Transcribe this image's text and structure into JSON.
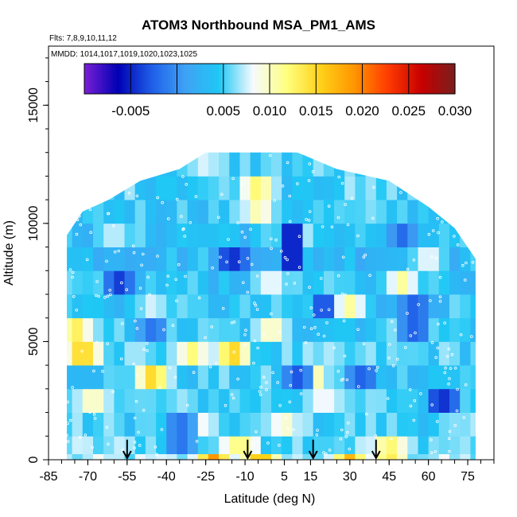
{
  "chart_data": {
    "type": "heatmap",
    "title": "ATOM3 Northbound MSA_PM1_AMS",
    "subtitle_flights": "Flts: 7,8,9,10,11,12",
    "subtitle_dates": "MMDD: 1014,1017,1019,1020,1023,1025",
    "xlabel": "Latitude (deg N)",
    "ylabel": "Altitude (m)",
    "xlim": [
      -85,
      85
    ],
    "ylim": [
      0,
      17500
    ],
    "x_ticks": [
      -85,
      -70,
      -55,
      -40,
      -25,
      -10,
      5,
      15,
      30,
      45,
      60,
      75
    ],
    "x_tick_labels": [
      "-85",
      "-70",
      "-55",
      "-40",
      "-25",
      "-10",
      "5",
      "15",
      "30",
      "45",
      "60",
      "75"
    ],
    "y_ticks": [
      0,
      5000,
      10000,
      15000
    ],
    "y_tick_labels": [
      "0",
      "5000",
      "10000",
      "15000"
    ],
    "colorbar": {
      "range": [
        -0.01,
        0.03
      ],
      "ticks": [
        -0.005,
        0.005,
        0.01,
        0.015,
        0.02,
        0.025,
        0.03
      ],
      "tick_labels": [
        "-0.005",
        "0.005",
        "0.010",
        "0.015",
        "0.020",
        "0.025",
        "0.030"
      ],
      "colors": [
        "#7a1fd6",
        "#0000b4",
        "#1f5ee8",
        "#3fa2f5",
        "#1fc8f5",
        "#f5faff",
        "#ffff80",
        "#ffd21a",
        "#ff9600",
        "#ff3c00",
        "#c80000",
        "#781e1e"
      ]
    },
    "flight_markers_lat": [
      -55,
      -9,
      16,
      40
    ],
    "altitude_envelope": [
      {
        "lat": -78,
        "top": 9500
      },
      {
        "lat": -72,
        "top": 10500
      },
      {
        "lat": -62,
        "top": 11000
      },
      {
        "lat": -50,
        "top": 11800
      },
      {
        "lat": -35,
        "top": 12300
      },
      {
        "lat": -25,
        "top": 13000
      },
      {
        "lat": -5,
        "top": 13200
      },
      {
        "lat": 10,
        "top": 13000
      },
      {
        "lat": 25,
        "top": 12300
      },
      {
        "lat": 45,
        "top": 11800
      },
      {
        "lat": 60,
        "top": 10700
      },
      {
        "lat": 70,
        "top": 9800
      },
      {
        "lat": 78,
        "top": 8500
      }
    ],
    "altitude_bands": [
      {
        "alt": 250,
        "base": 0.0065,
        "hot": [
          {
            "lat": -22,
            "v": 0.019
          },
          {
            "lat": -4,
            "v": 0.018
          },
          {
            "lat": 30,
            "v": 0.017
          },
          {
            "lat": 45,
            "v": 0.014
          }
        ]
      },
      {
        "alt": 750,
        "base": 0.006,
        "hot": [
          {
            "lat": -12,
            "v": 0.013
          },
          {
            "lat": 45,
            "v": 0.013
          }
        ]
      },
      {
        "alt": 1500,
        "base": 0.005,
        "hot": [
          {
            "lat": -30,
            "v": 0.011
          },
          {
            "lat": 5,
            "v": 0.01
          }
        ]
      },
      {
        "alt": 2500,
        "base": 0.005,
        "hot": [
          {
            "lat": -68,
            "v": 0.011
          },
          {
            "lat": 20,
            "v": 0.009
          }
        ]
      },
      {
        "alt": 3500,
        "base": 0.0045,
        "hot": [
          {
            "lat": -45,
            "v": 0.016
          },
          {
            "lat": 15,
            "v": 0.013
          }
        ]
      },
      {
        "alt": 4500,
        "base": 0.005,
        "hot": [
          {
            "lat": -72,
            "v": 0.017
          },
          {
            "lat": -15,
            "v": 0.016
          },
          {
            "lat": -30,
            "v": 0.012
          }
        ]
      },
      {
        "alt": 5500,
        "base": 0.0045,
        "hot": [
          {
            "lat": -75,
            "v": 0.014
          },
          {
            "lat": 0,
            "v": 0.011
          }
        ]
      },
      {
        "alt": 6500,
        "base": 0.004,
        "hot": [
          {
            "lat": 30,
            "v": 0.011
          },
          {
            "lat": -45,
            "v": 0.008
          }
        ]
      },
      {
        "alt": 7500,
        "base": 0.004,
        "hot": [
          {
            "lat": 50,
            "v": 0.011
          },
          {
            "lat": 0,
            "v": 0.009
          }
        ]
      },
      {
        "alt": 8500,
        "base": 0.0035,
        "hot": [
          {
            "lat": 60,
            "v": 0.009
          }
        ]
      },
      {
        "alt": 9500,
        "base": 0.004,
        "hot": [
          {
            "lat": -60,
            "v": 0.008
          },
          {
            "lat": 10,
            "v": 0.009
          }
        ]
      },
      {
        "alt": 10500,
        "base": 0.0045,
        "hot": [
          {
            "lat": -5,
            "v": 0.011
          }
        ]
      },
      {
        "alt": 11500,
        "base": 0.005,
        "hot": [
          {
            "lat": -5,
            "v": 0.013
          }
        ]
      },
      {
        "alt": 12500,
        "base": 0.005,
        "hot": [
          {
            "lat": -25,
            "v": 0.008
          }
        ]
      }
    ],
    "low_spots": [
      {
        "lat": -58,
        "alt": 7700,
        "v": -0.004
      },
      {
        "lat": -15,
        "alt": 8200,
        "v": -0.005
      },
      {
        "lat": 8,
        "alt": 9000,
        "v": -0.006
      },
      {
        "lat": 20,
        "alt": 6800,
        "v": -0.004
      },
      {
        "lat": 55,
        "alt": 6000,
        "v": -0.003
      },
      {
        "lat": 65,
        "alt": 2400,
        "v": -0.005
      },
      {
        "lat": 35,
        "alt": 3200,
        "v": -0.003
      },
      {
        "lat": -45,
        "alt": 5800,
        "v": -0.002
      },
      {
        "lat": 10,
        "alt": 3800,
        "v": -0.003
      },
      {
        "lat": -35,
        "alt": 1000,
        "v": -0.002
      },
      {
        "lat": 50,
        "alt": 9800,
        "v": -0.002
      }
    ],
    "grid": false
  }
}
